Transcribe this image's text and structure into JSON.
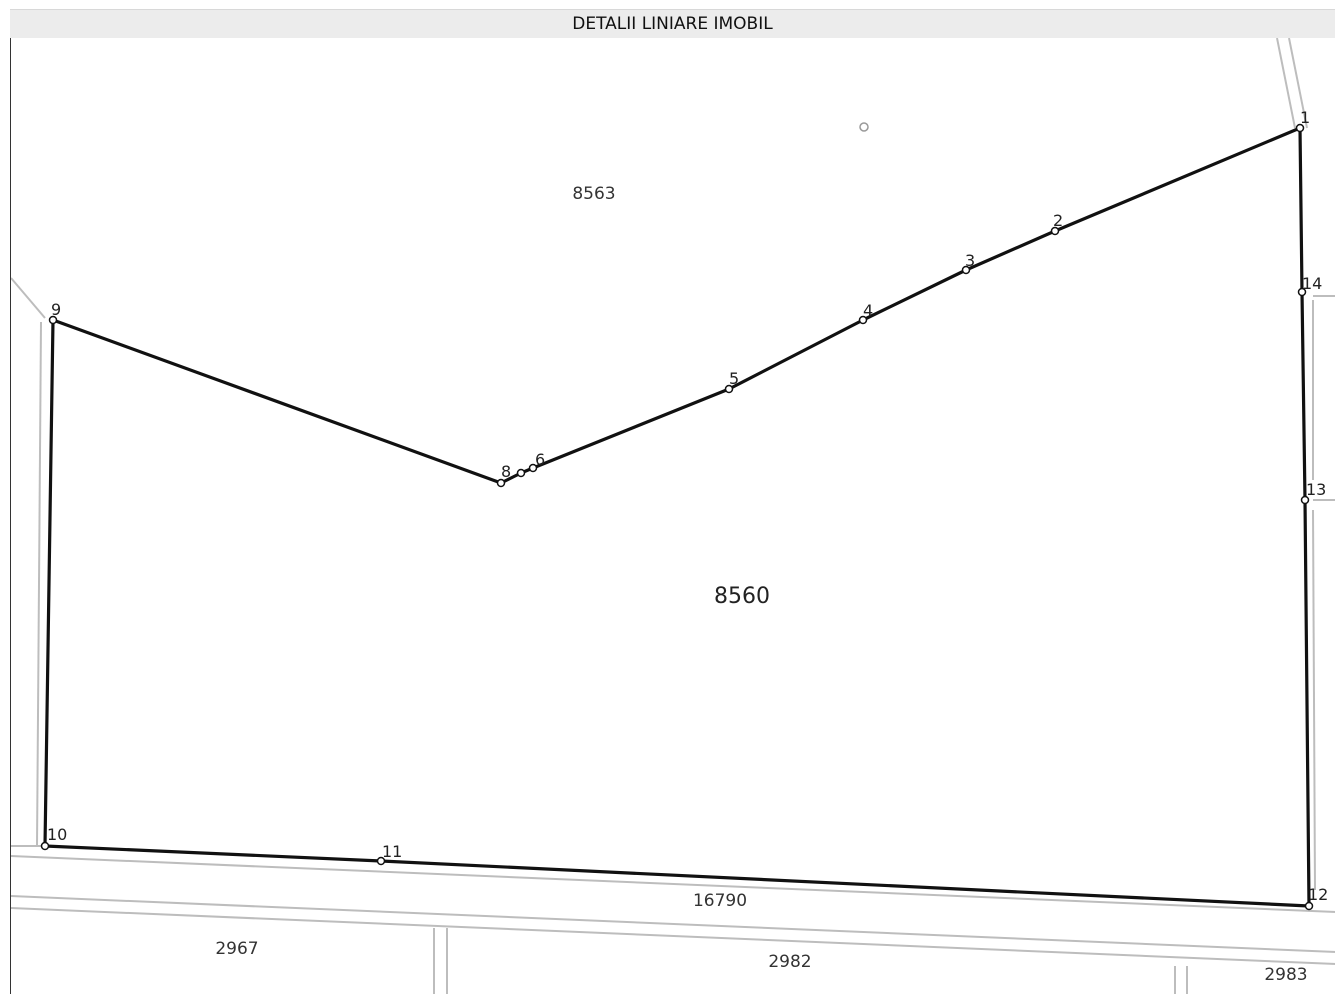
{
  "header": {
    "title": "DETALII LINIARE IMOBIL"
  },
  "map": {
    "main_parcel": {
      "id": "8560"
    },
    "neighbor_parcels": [
      {
        "id": "8563"
      },
      {
        "id": "16790"
      },
      {
        "id": "2967"
      },
      {
        "id": "2982"
      },
      {
        "id": "2983"
      }
    ],
    "vertices": [
      {
        "label": "1"
      },
      {
        "label": "2"
      },
      {
        "label": "3"
      },
      {
        "label": "4"
      },
      {
        "label": "5"
      },
      {
        "label": "6"
      },
      {
        "label": "8"
      },
      {
        "label": "9"
      },
      {
        "label": "10"
      },
      {
        "label": "11"
      },
      {
        "label": "12"
      },
      {
        "label": "13"
      },
      {
        "label": "14"
      }
    ]
  }
}
